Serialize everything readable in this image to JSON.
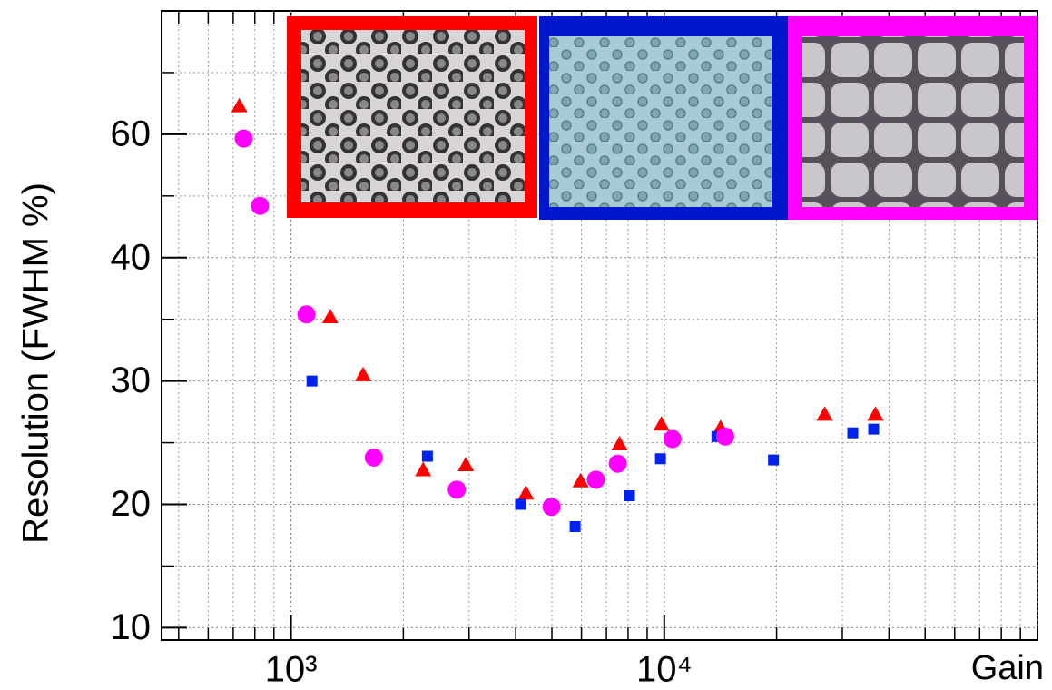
{
  "chart_data": {
    "type": "scatter",
    "y_label": "Resolution (FWHM %)",
    "x_label": "Gain",
    "xscale": "log",
    "yscale": "piecewise-linear",
    "grid": true,
    "xlim": [
      450,
      100000
    ],
    "xticks": [
      {
        "value": 1000,
        "label": "10³"
      },
      {
        "value": 10000,
        "label": "10⁴"
      }
    ],
    "ylim": [
      9,
      80
    ],
    "yticks": [
      10,
      20,
      30,
      40,
      60
    ],
    "series": [
      {
        "color": "#ff0000",
        "marker": "triangle",
        "x": [
          727,
          1274,
          1560,
          2260,
          2940,
          4260,
          5970,
          7590,
          9830,
          14150,
          26900,
          36800
        ],
        "values": [
          64.6,
          35.2,
          30.5,
          22.8,
          23.2,
          20.9,
          21.9,
          24.9,
          26.5,
          26.2,
          27.3,
          27.3
        ]
      },
      {
        "color": "#0022ee",
        "marker": "square",
        "x": [
          1138,
          2320,
          4120,
          5770,
          8070,
          9770,
          13840,
          19620,
          32000,
          36400
        ],
        "values": [
          30,
          23.9,
          20,
          18.2,
          20.7,
          23.7,
          25.5,
          23.6,
          25.8,
          26.1
        ]
      },
      {
        "color": "#ff00ff",
        "marker": "circle",
        "x": [
          747,
          826,
          1100,
          1667,
          2780,
          4990,
          6560,
          7510,
          10520,
          14560
        ],
        "values": [
          59.3,
          48.4,
          35.4,
          23.8,
          21.2,
          19.8,
          22.0,
          23.3,
          25.3,
          25.5
        ]
      }
    ]
  }
}
